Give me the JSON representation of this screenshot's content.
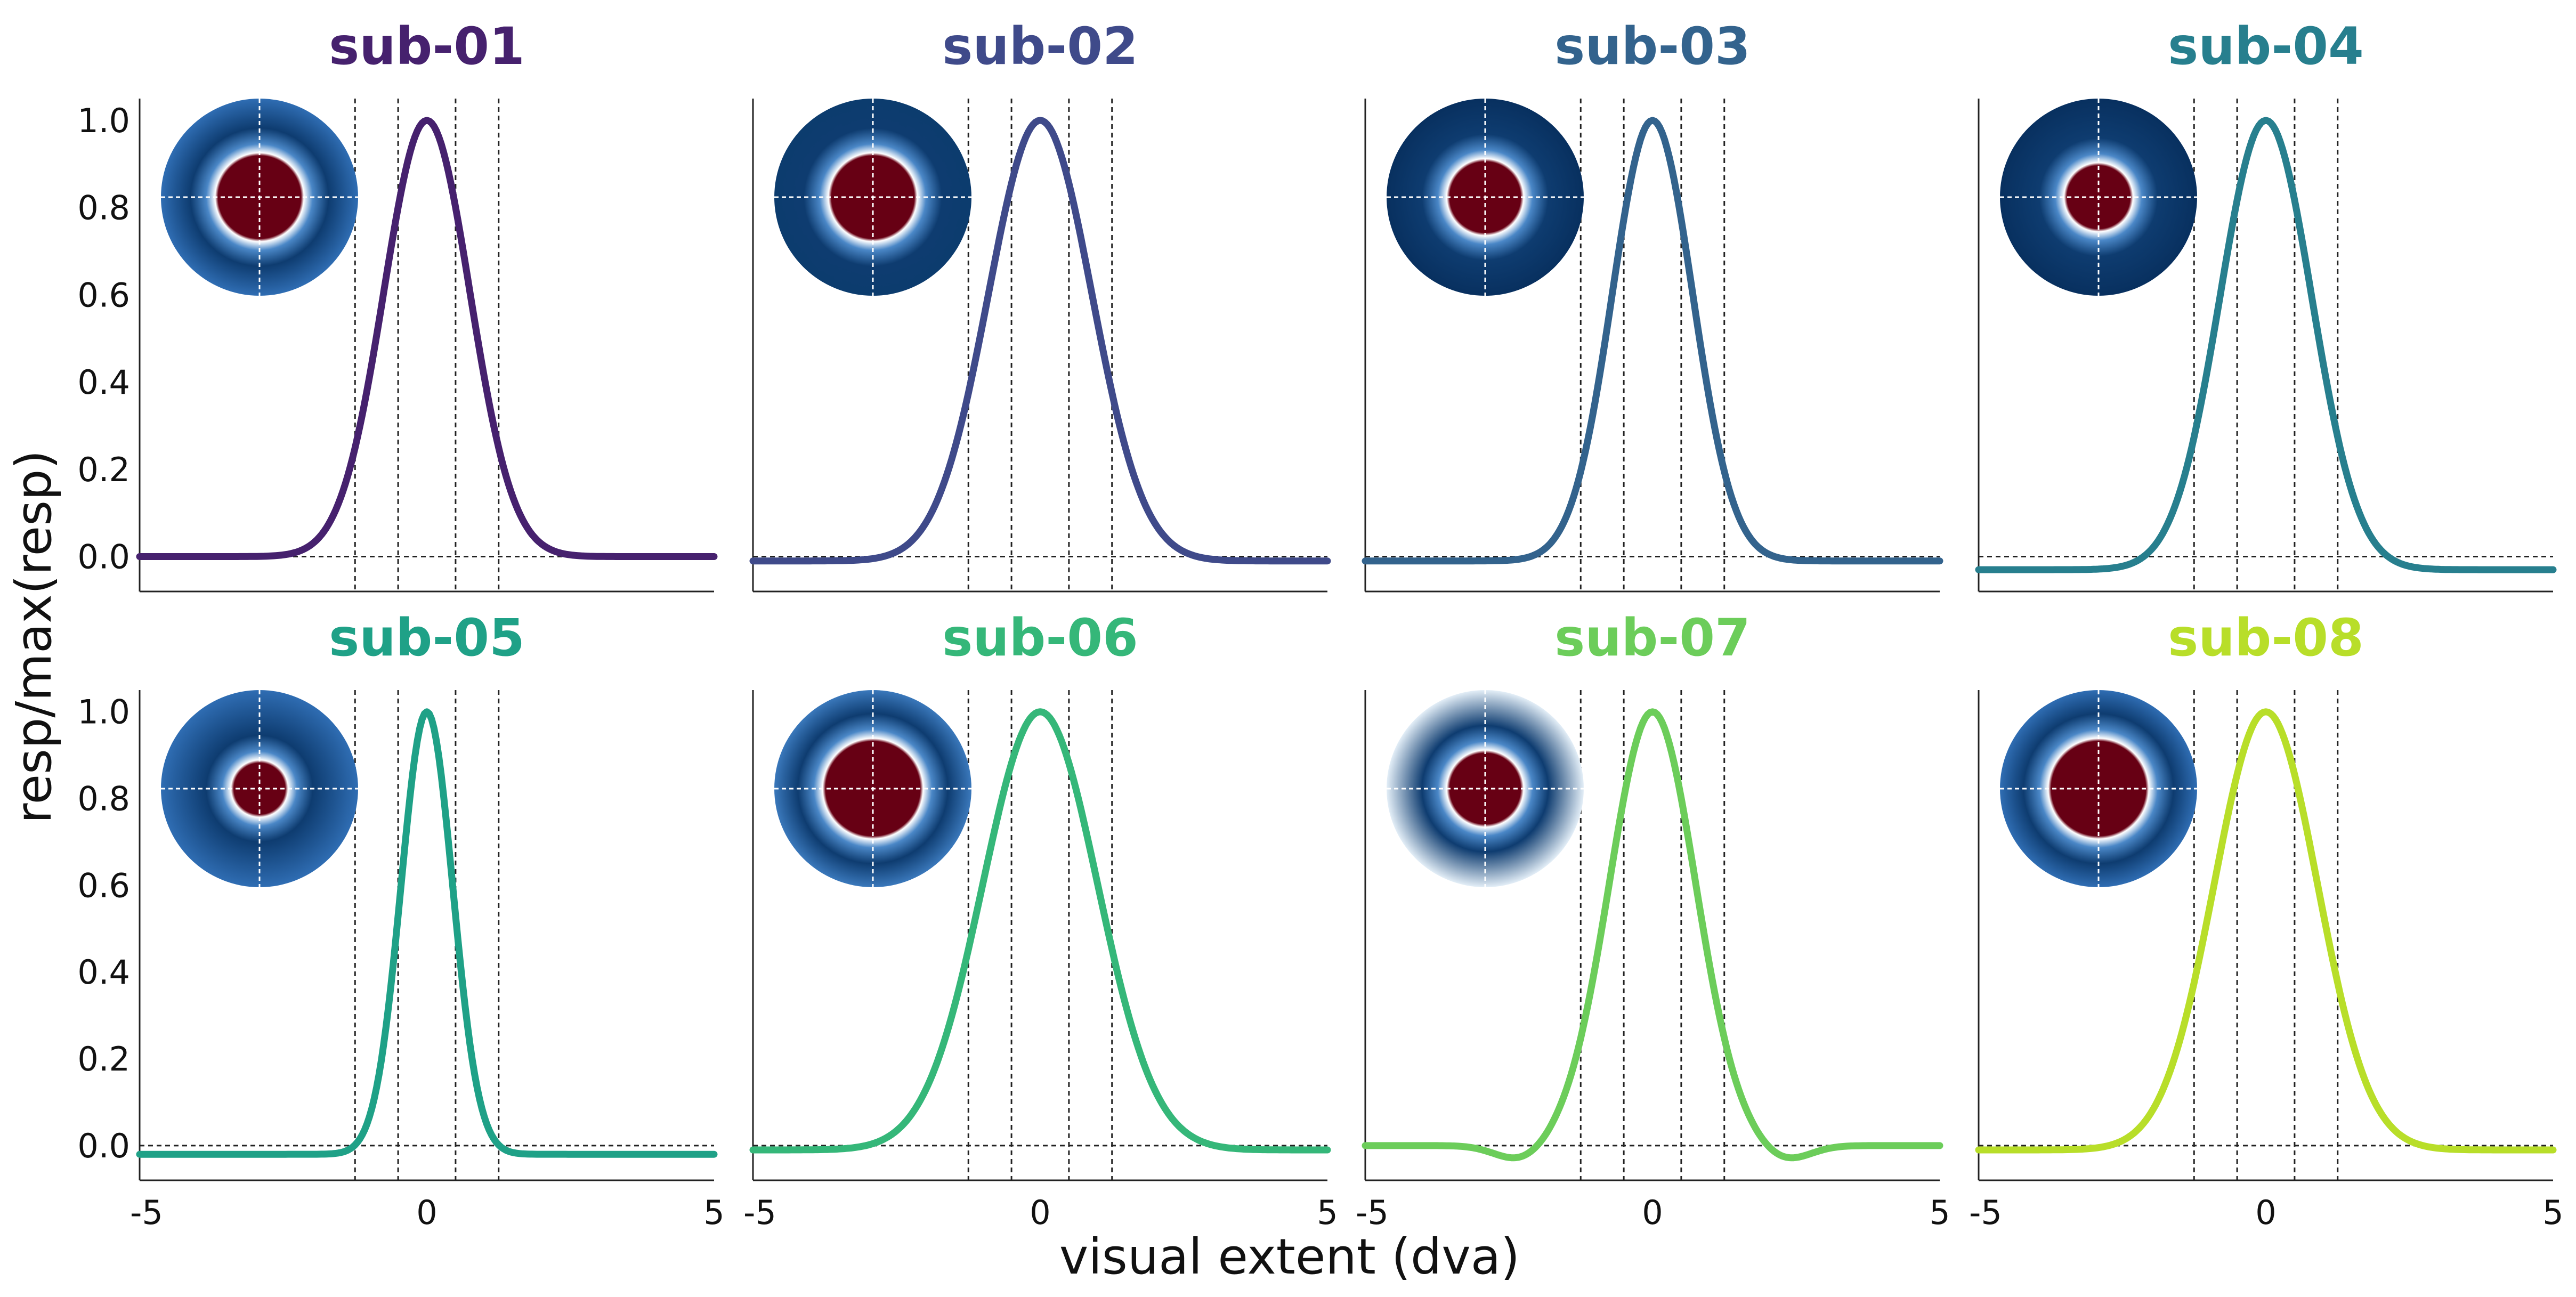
{
  "figure": {
    "ylabel": "resp/max(resp)",
    "xlabel": "visual extent (dva)"
  },
  "chart_data": [
    {
      "type": "line",
      "title": "sub-01",
      "color": "#46216e",
      "amplitude": 1.0,
      "sigma": 0.75,
      "baseline": 0.0,
      "vlines": [
        -1.25,
        -0.5,
        0.5,
        1.25
      ],
      "inset_background": "#2f6db3",
      "inset_center_radius": 0.42,
      "xlim": [
        -5,
        5
      ],
      "ylim": [
        -0.08,
        1.05
      ],
      "xticks": [
        -5,
        0,
        5
      ],
      "yticks": [
        0.0,
        0.2,
        0.4,
        0.6,
        0.8,
        1.0
      ]
    },
    {
      "type": "line",
      "title": "sub-02",
      "color": "#3f4a8a",
      "amplitude": 1.0,
      "sigma": 0.9,
      "baseline": -0.01,
      "vlines": [
        -1.25,
        -0.5,
        0.5,
        1.25
      ],
      "inset_background": "#0c3c6e",
      "inset_center_radius": 0.42,
      "xlim": [
        -5,
        5
      ],
      "ylim": [
        -0.08,
        1.05
      ],
      "xticks": [
        -5,
        0,
        5
      ],
      "yticks": [
        0.0,
        0.2,
        0.4,
        0.6,
        0.8,
        1.0
      ]
    },
    {
      "type": "line",
      "title": "sub-03",
      "color": "#33638d",
      "amplitude": 1.0,
      "sigma": 0.7,
      "baseline": -0.01,
      "vlines": [
        -1.25,
        -0.5,
        0.5,
        1.25
      ],
      "inset_background": "#08305f",
      "inset_center_radius": 0.36,
      "xlim": [
        -5,
        5
      ],
      "ylim": [
        -0.08,
        1.05
      ],
      "xticks": [
        -5,
        0,
        5
      ],
      "yticks": [
        0.0,
        0.2,
        0.4,
        0.6,
        0.8,
        1.0
      ]
    },
    {
      "type": "line",
      "title": "sub-04",
      "color": "#277f8e",
      "amplitude": 1.0,
      "sigma": 0.8,
      "baseline": -0.03,
      "vlines": [
        -1.25,
        -0.5,
        0.5,
        1.25
      ],
      "inset_background": "#08305f",
      "inset_center_radius": 0.32,
      "xlim": [
        -5,
        5
      ],
      "ylim": [
        -0.08,
        1.05
      ],
      "xticks": [
        -5,
        0,
        5
      ],
      "yticks": [
        0.0,
        0.2,
        0.4,
        0.6,
        0.8,
        1.0
      ]
    },
    {
      "type": "line",
      "title": "sub-05",
      "color": "#1fa187",
      "amplitude": 1.0,
      "sigma": 0.45,
      "baseline": -0.02,
      "vlines": [
        -1.25,
        -0.5,
        0.5,
        1.25
      ],
      "inset_background": "#2f6db3",
      "inset_center_radius": 0.26,
      "xlim": [
        -5,
        5
      ],
      "ylim": [
        -0.08,
        1.05
      ],
      "xticks": [
        -5,
        0,
        5
      ],
      "yticks": [
        0.0,
        0.2,
        0.4,
        0.6,
        0.8,
        1.0
      ]
    },
    {
      "type": "line",
      "title": "sub-06",
      "color": "#35b779",
      "amplitude": 1.0,
      "sigma": 1.0,
      "baseline": -0.01,
      "vlines": [
        -1.25,
        -0.5,
        0.5,
        1.25
      ],
      "inset_background": "#3a78bb",
      "inset_center_radius": 0.48,
      "xlim": [
        -5,
        5
      ],
      "ylim": [
        -0.08,
        1.05
      ],
      "xticks": [
        -5,
        0,
        5
      ],
      "yticks": [
        0.0,
        0.2,
        0.4,
        0.6,
        0.8,
        1.0
      ]
    },
    {
      "type": "line",
      "title": "sub-07",
      "color": "#6ccd5a",
      "amplitude": 1.0,
      "sigma": 0.75,
      "baseline": 0.0,
      "vlines": [
        -1.25,
        -0.5,
        0.5,
        1.25
      ],
      "inset_background": "#e3eef7",
      "inset_center_radius": 0.36,
      "xlim": [
        -5,
        5
      ],
      "ylim": [
        -0.08,
        1.05
      ],
      "xticks": [
        -5,
        0,
        5
      ],
      "yticks": [
        0.0,
        0.2,
        0.4,
        0.6,
        0.8,
        1.0
      ]
    },
    {
      "type": "line",
      "title": "sub-08",
      "color": "#b8de29",
      "amplitude": 1.0,
      "sigma": 0.9,
      "baseline": -0.01,
      "vlines": [
        -1.25,
        -0.5,
        0.5,
        1.25
      ],
      "inset_background": "#2f6db3",
      "inset_center_radius": 0.48,
      "xlim": [
        -5,
        5
      ],
      "ylim": [
        -0.08,
        1.05
      ],
      "xticks": [
        -5,
        0,
        5
      ],
      "yticks": [
        0.0,
        0.2,
        0.4,
        0.6,
        0.8,
        1.0
      ]
    }
  ]
}
